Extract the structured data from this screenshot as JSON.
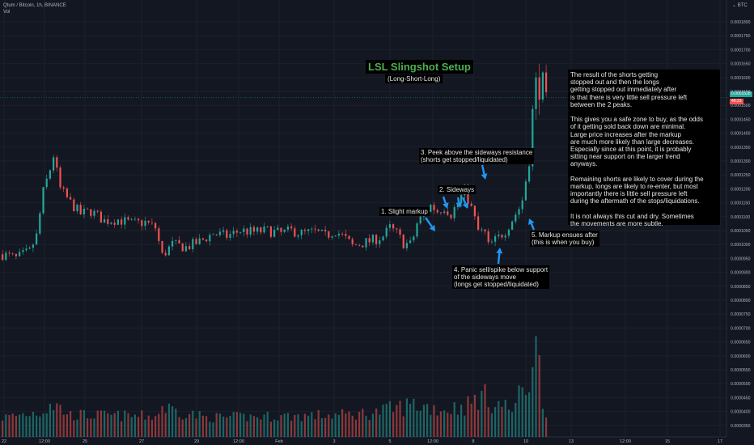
{
  "symbol": {
    "info": "Qtum / Bitcoin, 1h, BINANCE",
    "volume_label": "Vol"
  },
  "axis": {
    "currency": "BTC",
    "current_price": "0.0001528",
    "countdown": "49:23",
    "current_price_color": "#26a69a",
    "countdown_color": "#ef5350"
  },
  "annotations": {
    "title": "LSL Slingshot Setup",
    "subtitle": "(Long-Short-Long)",
    "step1": "1. Slight markup",
    "step2": "2. Sideways",
    "step3": "3. Peek above the sideways resistance\n(shorts get stopped/liquidated)",
    "step4": "4. Panic sell/spike below support\nof the sideways move\n(longs get stopped/liquidated)",
    "step5": "5. Markup ensues after\n(this is when you buy)",
    "note": "The result of the shorts getting\nstopped out and then the longs\ngetting stopped out immediately after\nis that there is very little sell pressure left\nbetween the 2 peaks.\n\nThis gives you a safe zone to buy, as the odds\nof it getting sold back down are minimal.\nLarge price increases after the markup\nare much more likely than large decreases.\nEspecially since at this point, it is probably\nsitting near support on the larger trend\nanyways.\n\nRemaining shorts are likely to cover during the\nmarkup, longs are likely to re-enter, but most\nimportantly there is little sell pressure left\nduring the aftermath of the stops/liquidations.\n\nIt is not always this cut and dry. Sometimes\nthe movements are more subtle.",
    "arrow_color": "#2196f3"
  },
  "chart_data": {
    "type": "candlestick",
    "up_color": "#26a69a",
    "down_color": "#ef5350",
    "background": "#131722",
    "grid": true,
    "price_ticks": [
      "0.0001800",
      "0.0001750",
      "0.0001700",
      "0.0001650",
      "0.0001600",
      "0.0001550",
      "0.0001500",
      "0.0001450",
      "0.0001400",
      "0.0001350",
      "0.0001300",
      "0.0001250",
      "0.0001200",
      "0.0001150",
      "0.0001100",
      "0.0001050",
      "0.0001000",
      "0.0000950",
      "0.0000900",
      "0.0000850",
      "0.0000800",
      "0.0000750",
      "0.0000700",
      "0.0000650",
      "0.0000600",
      "0.0000550",
      "0.0000500",
      "0.0000450",
      "0.0000400",
      "0.0000350"
    ],
    "x_ticks": [
      "22",
      "12:00",
      "25",
      "27",
      "29",
      "12:00",
      "Feb",
      "3",
      "5",
      "12:00",
      "8",
      "10",
      "13",
      "12:00",
      "15",
      "17"
    ],
    "price_path": [
      [
        0,
        9.65e-05
      ],
      [
        4,
        9.5e-05
      ],
      [
        8,
        9.75e-05
      ],
      [
        10,
        0.000103
      ],
      [
        12,
        0.000119
      ],
      [
        14,
        0.000127
      ],
      [
        15,
        0.000132
      ],
      [
        17,
        0.00012
      ],
      [
        20,
        0.000115
      ],
      [
        23,
        0.000111
      ],
      [
        26,
        0.000112
      ],
      [
        30,
        0.0001085
      ],
      [
        34,
        0.000109
      ],
      [
        38,
        0.0001075
      ],
      [
        42,
        0.000108
      ],
      [
        45,
        0.000106
      ],
      [
        47,
        9.6e-05
      ],
      [
        50,
        0.0001
      ],
      [
        54,
        9.9e-05
      ],
      [
        58,
        0.000101
      ],
      [
        62,
        0.000104
      ],
      [
        66,
        0.000103
      ],
      [
        70,
        0.000105
      ],
      [
        74,
        0.0001045
      ],
      [
        78,
        0.000105
      ],
      [
        82,
        0.000104
      ],
      [
        85,
        0.000105
      ],
      [
        88,
        0.000104
      ],
      [
        92,
        0.0001045
      ],
      [
        95,
        0.000103
      ],
      [
        98,
        0.000105
      ],
      [
        101,
        0.000102
      ],
      [
        103,
        9.95e-05
      ],
      [
        106,
        0.0001005
      ],
      [
        109,
        0.0001015
      ],
      [
        112,
        0.000103
      ],
      [
        114,
        0.000106
      ],
      [
        116,
        0.000104
      ],
      [
        118,
        0.0001005
      ],
      [
        120,
        0.0001
      ],
      [
        121,
        0.000103
      ],
      [
        122,
        0.0001075
      ],
      [
        124,
        0.000111
      ],
      [
        126,
        0.000114
      ],
      [
        128,
        0.000112
      ],
      [
        130,
        0.0001135
      ],
      [
        132,
        0.000111
      ],
      [
        134,
        0.000115
      ],
      [
        136,
        0.0001195
      ],
      [
        138,
        0.000113
      ],
      [
        140,
        0.000105
      ],
      [
        142,
        0.000104
      ],
      [
        143,
        9.95e-05
      ],
      [
        146,
        0.0001025
      ],
      [
        148,
        0.000105
      ],
      [
        150,
        0.000109
      ],
      [
        152,
        0.000113
      ],
      [
        153,
        0.000116
      ],
      [
        155,
        0.00013
      ],
      [
        156,
        0.000148
      ],
      [
        157,
        0.000159
      ],
      [
        158,
        0.000154
      ],
      [
        159,
        0.00016
      ],
      [
        160,
        0.0001528
      ]
    ],
    "volume_path": [
      [
        0,
        3.8e-05
      ],
      [
        12,
        4.05e-05
      ],
      [
        14,
        4.4e-05
      ],
      [
        20,
        3.9e-05
      ],
      [
        45,
        3.85e-05
      ],
      [
        47,
        4.2e-05
      ],
      [
        60,
        3.8e-05
      ],
      [
        100,
        3.9e-05
      ],
      [
        110,
        4e-05
      ],
      [
        121,
        4.3e-05
      ],
      [
        130,
        4.1e-05
      ],
      [
        138,
        4.3e-05
      ],
      [
        140,
        4.65e-05
      ],
      [
        150,
        4.1e-05
      ],
      [
        155,
        5.2e-05
      ],
      [
        156,
        6.9e-05
      ],
      [
        157,
        6.2e-05
      ],
      [
        158,
        5.6e-05
      ],
      [
        160,
        3.8e-05
      ]
    ]
  }
}
